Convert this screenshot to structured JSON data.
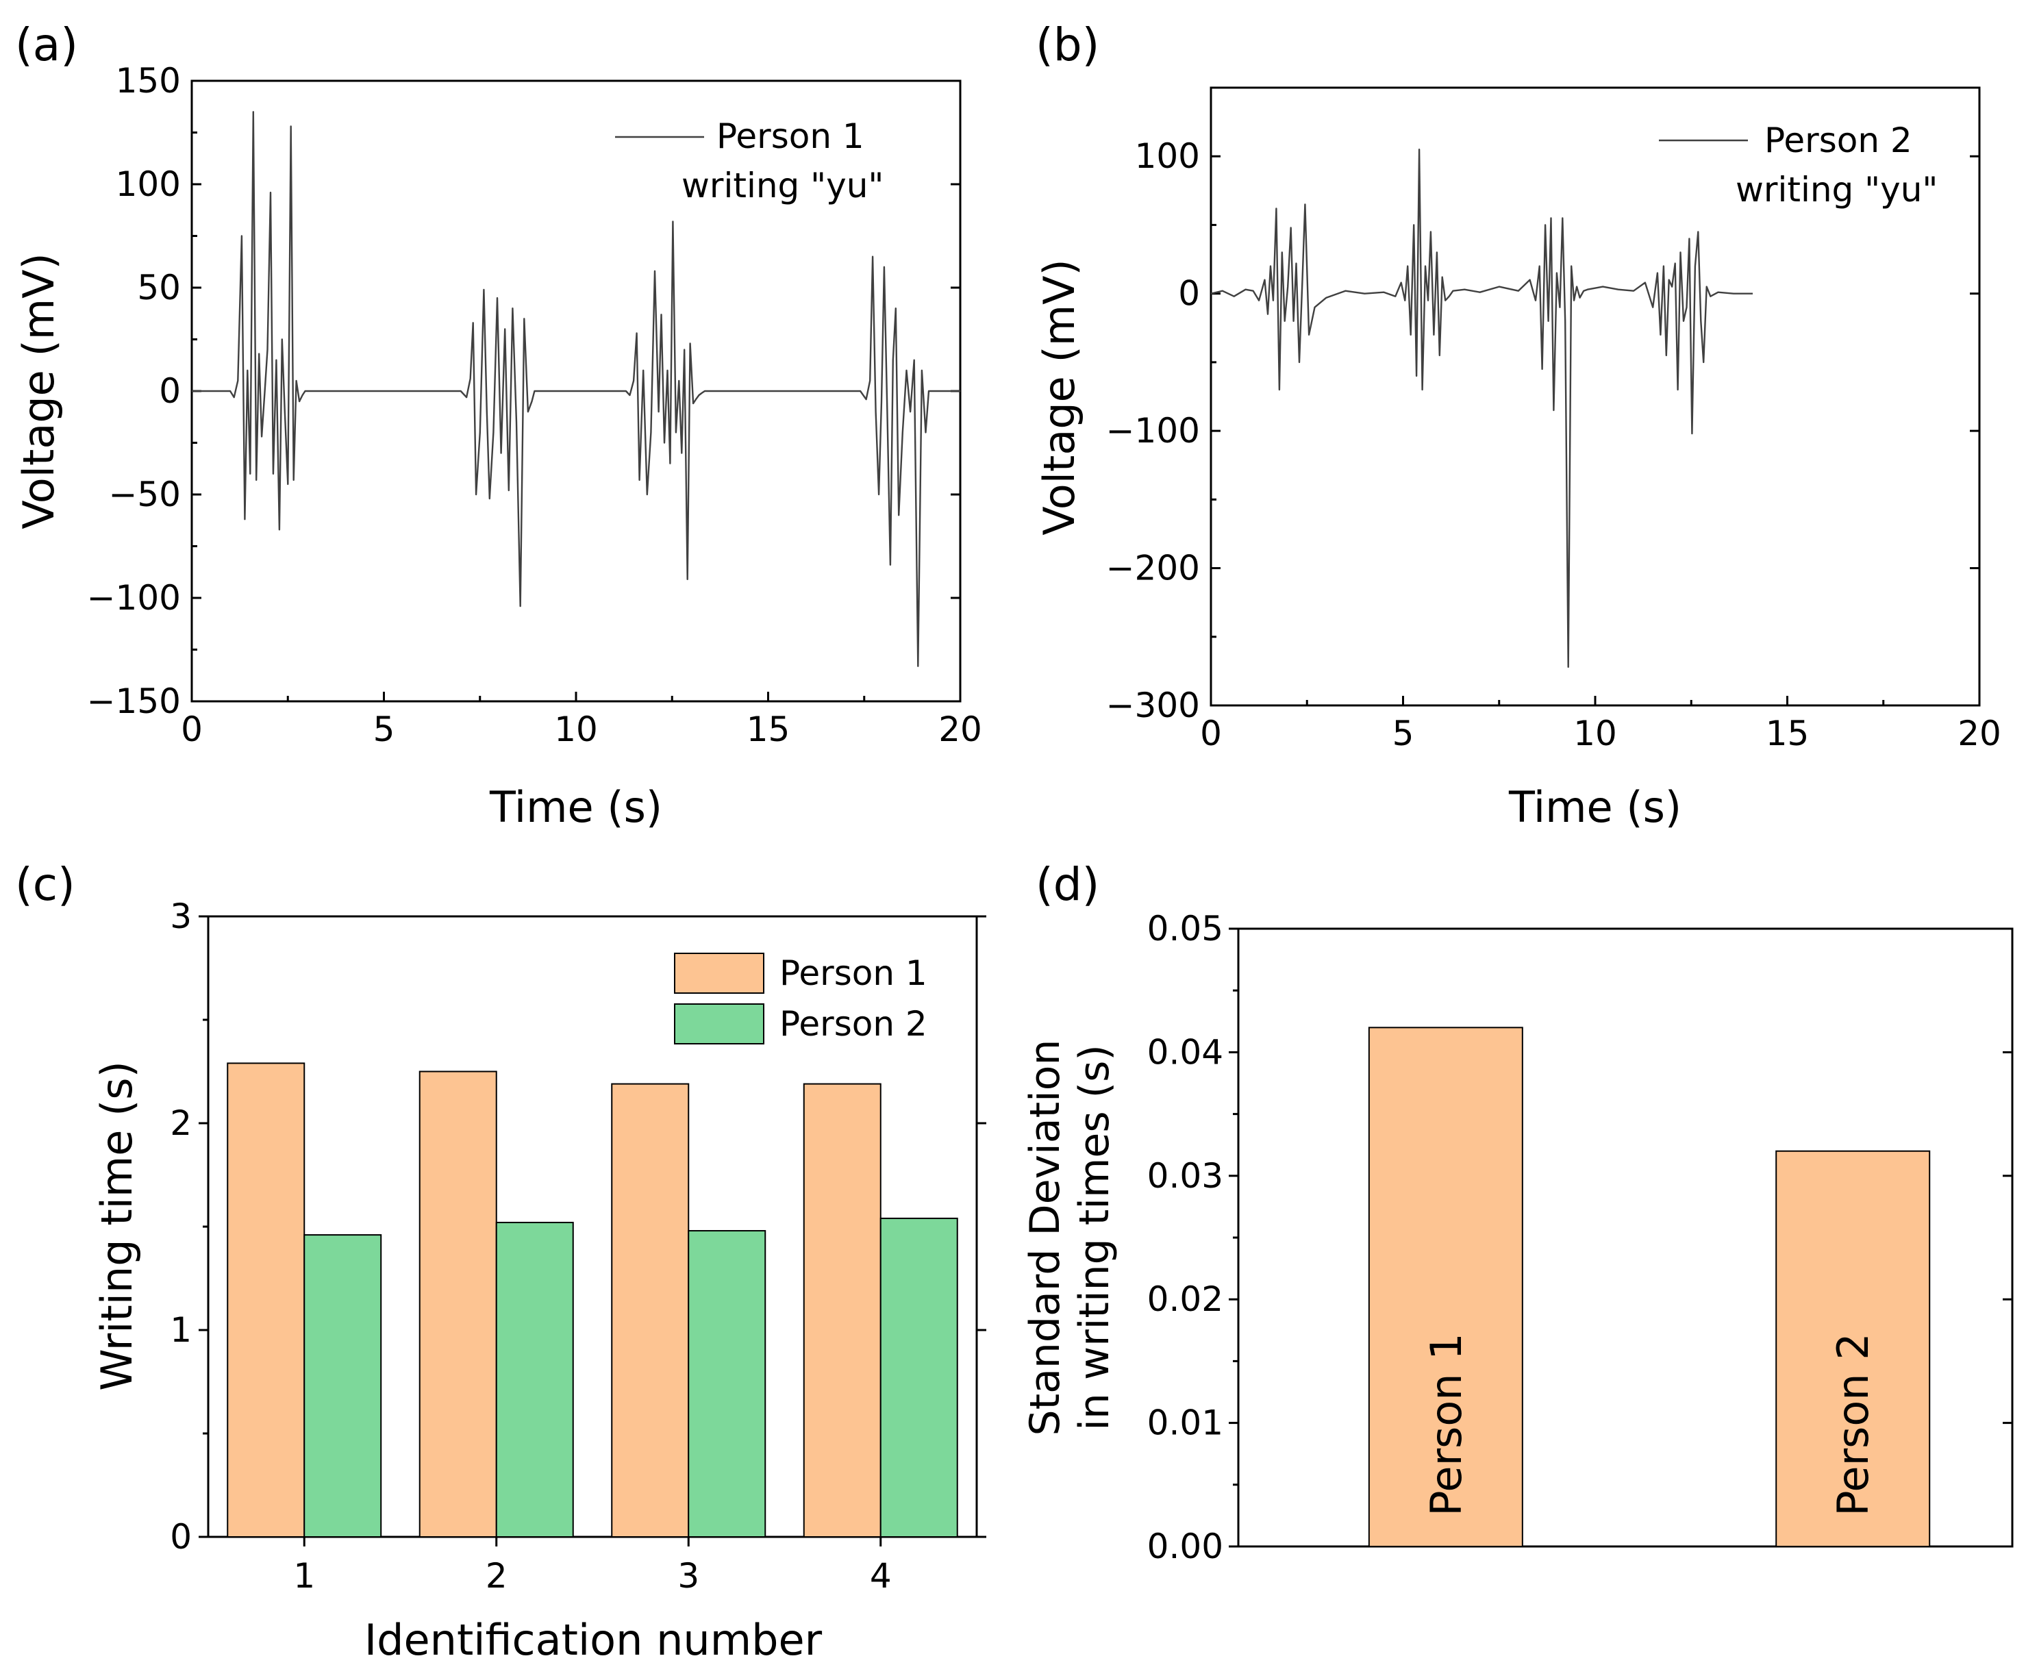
{
  "chart_data": [
    {
      "panel_label": "(a)",
      "type": "line",
      "xlabel": "Time (s)",
      "ylabel": "Voltage (mV)",
      "xlim": [
        0,
        20
      ],
      "ylim": [
        -150,
        150
      ],
      "xticks": [
        0,
        5,
        10,
        15,
        20
      ],
      "yticks": [
        -150,
        -100,
        -50,
        0,
        50,
        100,
        150
      ],
      "ytick_labels": [
        "−150",
        "−100",
        "−50",
        "0",
        "50",
        "100",
        "150"
      ],
      "legend": {
        "line1": "Person 1",
        "line2": "writing \"yu\"",
        "position": "top-right"
      },
      "series": [
        {
          "name": "Person 1 writing \"yu\"",
          "color": "#404040",
          "x": [
            0,
            1.0,
            1.1,
            1.2,
            1.3,
            1.38,
            1.45,
            1.52,
            1.6,
            1.68,
            1.75,
            1.82,
            1.9,
            1.97,
            2.05,
            2.12,
            2.2,
            2.28,
            2.35,
            2.42,
            2.5,
            2.58,
            2.65,
            2.72,
            2.8,
            2.88,
            2.95,
            3.02,
            3.1,
            3.2,
            3.3,
            7.0,
            7.15,
            7.25,
            7.32,
            7.4,
            7.5,
            7.6,
            7.68,
            7.75,
            7.85,
            7.95,
            8.05,
            8.15,
            8.25,
            8.35,
            8.45,
            8.55,
            8.65,
            8.75,
            8.85,
            8.92,
            9.0,
            9.08,
            9.15,
            9.25,
            9.35,
            11.3,
            11.4,
            11.5,
            11.58,
            11.65,
            11.75,
            11.85,
            11.95,
            12.05,
            12.15,
            12.22,
            12.3,
            12.38,
            12.45,
            12.52,
            12.6,
            12.68,
            12.75,
            12.82,
            12.9,
            12.97,
            13.05,
            13.12,
            13.2,
            13.27,
            13.35,
            13.45,
            13.55,
            17.4,
            17.55,
            17.65,
            17.72,
            17.8,
            17.88,
            17.95,
            18.02,
            18.1,
            18.18,
            18.25,
            18.32,
            18.4,
            18.5,
            18.6,
            18.7,
            18.8,
            18.9,
            19.0,
            19.1,
            19.18,
            19.25,
            19.32,
            19.4,
            19.5,
            19.6,
            20.0
          ],
          "y": [
            0,
            0,
            -3,
            5,
            75,
            -62,
            10,
            -40,
            135,
            -43,
            18,
            -22,
            0,
            20,
            96,
            -40,
            15,
            -67,
            25,
            -10,
            -45,
            128,
            -43,
            5,
            -5,
            -2,
            0,
            0,
            0,
            0,
            0,
            0,
            -3,
            6,
            33,
            -50,
            -20,
            49,
            -10,
            -52,
            -20,
            45,
            -30,
            30,
            -48,
            40,
            -15,
            -104,
            35,
            -10,
            -5,
            0,
            0,
            0,
            0,
            0,
            0,
            0,
            -2,
            5,
            28,
            -43,
            10,
            -50,
            -20,
            58,
            -10,
            37,
            -25,
            10,
            -35,
            82,
            -20,
            5,
            -30,
            20,
            -91,
            23,
            -6,
            -4,
            -2,
            -1,
            0,
            0,
            0,
            0,
            -4,
            5,
            65,
            -10,
            -50,
            -5,
            60,
            -10,
            -84,
            15,
            40,
            -60,
            -20,
            10,
            -10,
            15,
            -133,
            10,
            -20,
            0,
            0,
            0,
            0,
            0,
            0,
            0
          ]
        }
      ]
    },
    {
      "panel_label": "(b)",
      "type": "line",
      "xlabel": "Time (s)",
      "ylabel": "Voltage (mV)",
      "xlim": [
        0,
        20
      ],
      "ylim": [
        -300,
        150
      ],
      "xticks": [
        0,
        5,
        10,
        15,
        20
      ],
      "yticks": [
        -300,
        -200,
        -100,
        0,
        100
      ],
      "ytick_labels": [
        "−300",
        "−200",
        "−100",
        "0",
        "100"
      ],
      "legend": {
        "line1": "Person 2",
        "line2": "writing \"yu\"",
        "position": "top-right"
      },
      "series": [
        {
          "name": "Person 2 writing \"yu\"",
          "color": "#404040",
          "x": [
            0,
            0.3,
            0.6,
            0.9,
            1.1,
            1.25,
            1.4,
            1.48,
            1.55,
            1.62,
            1.7,
            1.78,
            1.85,
            1.92,
            2.0,
            2.08,
            2.15,
            2.22,
            2.3,
            2.38,
            2.45,
            2.55,
            2.7,
            3.0,
            3.5,
            4.0,
            4.5,
            4.8,
            4.95,
            5.05,
            5.12,
            5.2,
            5.28,
            5.35,
            5.42,
            5.5,
            5.58,
            5.65,
            5.72,
            5.8,
            5.88,
            5.95,
            6.02,
            6.1,
            6.2,
            6.3,
            6.6,
            7.0,
            7.5,
            8.0,
            8.3,
            8.45,
            8.55,
            8.62,
            8.7,
            8.78,
            8.85,
            8.92,
            9.0,
            9.08,
            9.15,
            9.22,
            9.3,
            9.38,
            9.45,
            9.52,
            9.6,
            9.7,
            9.8,
            10.2,
            10.6,
            11.0,
            11.3,
            11.5,
            11.62,
            11.7,
            11.78,
            11.85,
            11.92,
            12.0,
            12.08,
            12.15,
            12.22,
            12.3,
            12.38,
            12.45,
            12.52,
            12.6,
            12.68,
            12.75,
            12.82,
            12.9,
            13.0,
            13.2,
            13.6,
            14.1
          ],
          "y": [
            0,
            2,
            -2,
            3,
            2,
            -5,
            10,
            -15,
            20,
            -5,
            62,
            -70,
            30,
            -20,
            5,
            48,
            -20,
            22,
            -50,
            10,
            65,
            -30,
            -10,
            -3,
            2,
            0,
            1,
            -2,
            8,
            -5,
            20,
            -30,
            50,
            -60,
            105,
            -70,
            20,
            -5,
            45,
            -30,
            30,
            -45,
            12,
            -5,
            -2,
            2,
            3,
            1,
            5,
            2,
            10,
            -5,
            20,
            -55,
            50,
            -20,
            55,
            -85,
            15,
            -10,
            55,
            -20,
            -272,
            20,
            -5,
            5,
            -3,
            2,
            3,
            5,
            3,
            2,
            8,
            -10,
            15,
            -30,
            20,
            -45,
            10,
            5,
            22,
            -70,
            30,
            -20,
            -10,
            40,
            -102,
            20,
            45,
            -20,
            -50,
            5,
            -2,
            1,
            0,
            0
          ]
        }
      ]
    },
    {
      "panel_label": "(c)",
      "type": "bar",
      "xlabel": "Identification number",
      "ylabel": "Writing time (s)",
      "ylim": [
        0,
        3
      ],
      "yticks": [
        0,
        1,
        2,
        3
      ],
      "categories": [
        "1",
        "2",
        "3",
        "4"
      ],
      "legend_position": "top-right",
      "series": [
        {
          "name": "Person 1",
          "color": "#FDC492",
          "values": [
            2.29,
            2.25,
            2.19,
            2.19
          ]
        },
        {
          "name": "Person 2",
          "color": "#7DD89A",
          "values": [
            1.46,
            1.52,
            1.48,
            1.54
          ]
        }
      ]
    },
    {
      "panel_label": "(d)",
      "type": "bar",
      "ylabel_line1": "Standard Deviation",
      "ylabel_line2": "in writing times (s)",
      "ylim": [
        0,
        0.05
      ],
      "yticks": [
        0,
        0.01,
        0.02,
        0.03,
        0.04,
        0.05
      ],
      "ytick_labels": [
        "0.00",
        "0.01",
        "0.02",
        "0.03",
        "0.04",
        "0.05"
      ],
      "categories": [
        "Person 1",
        "Person 2"
      ],
      "color": "#FDC492",
      "values": [
        0.042,
        0.032
      ]
    }
  ]
}
